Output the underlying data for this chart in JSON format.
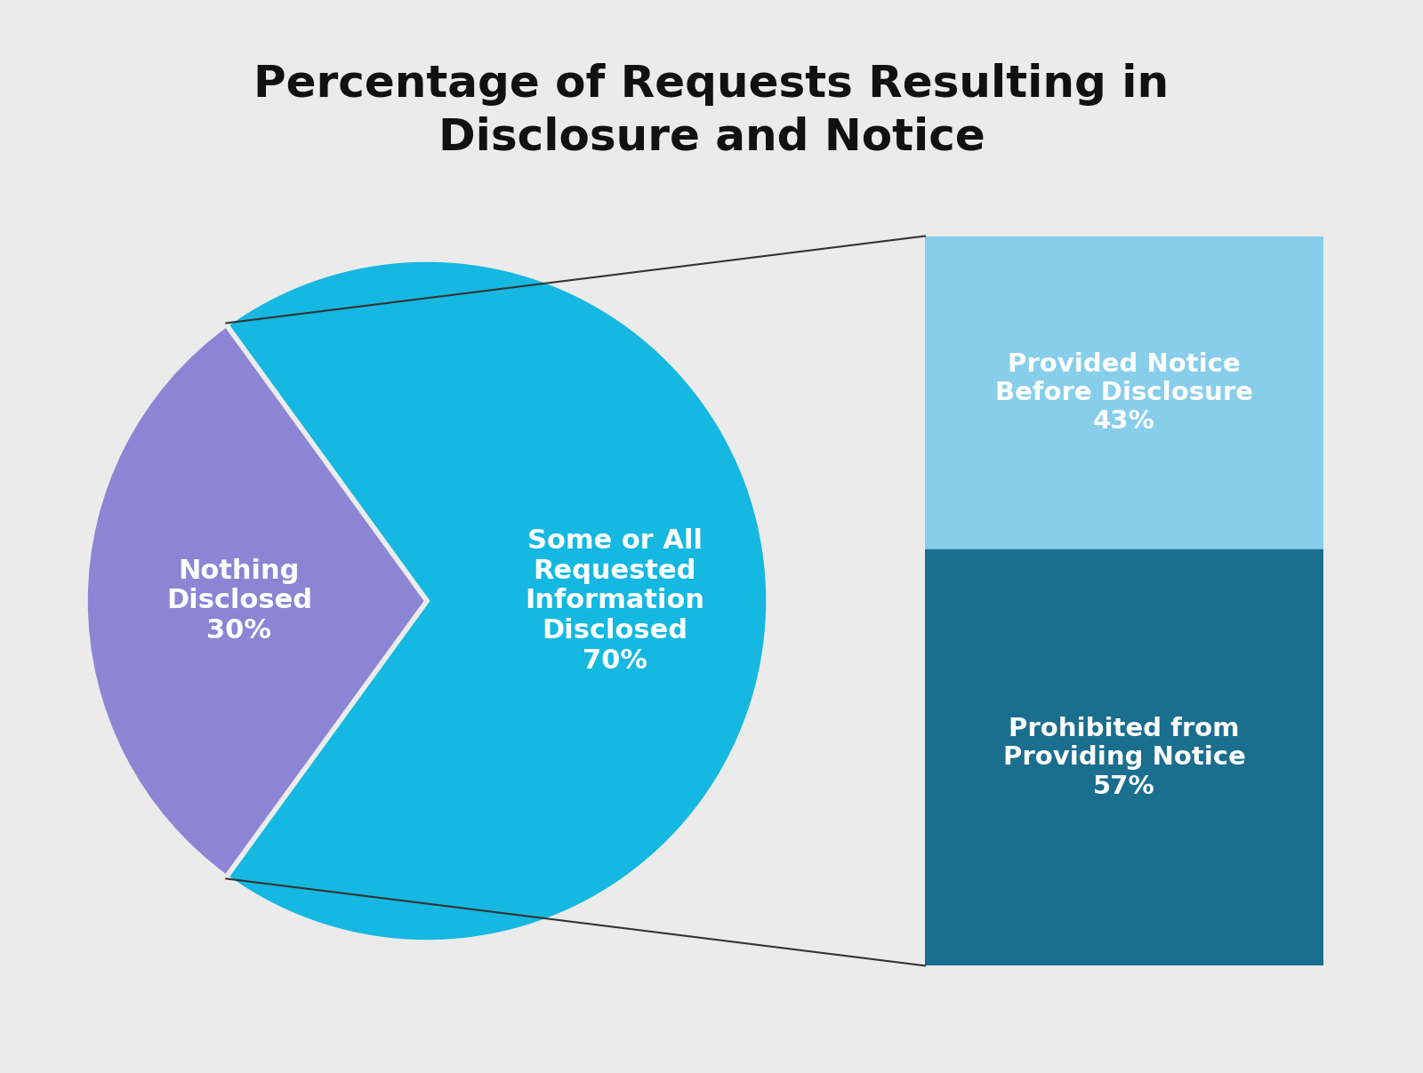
{
  "title": "Percentage of Requests Resulting in\nDisclosure and Notice",
  "title_fontsize": 36,
  "background_color": "#ebebeb",
  "pie_colors": [
    "#14b8e0",
    "#8b85d4"
  ],
  "pie_labels_text": [
    "Some or All\nRequested\nInformation\nDisclosed\n70%",
    "Nothing\nDisclosed\n30%"
  ],
  "pie_values": [
    70,
    30
  ],
  "bar_colors": [
    "#87ceeb",
    "#1a6e8e"
  ],
  "bar_labels": [
    "Provided Notice\nBefore Disclosure\n43%",
    "Prohibited from\nProviding Notice\n57%"
  ],
  "bar_values": [
    43,
    57
  ],
  "text_color_white": "#ffffff",
  "text_color_black": "#1a1a1a",
  "label_fontsize": 22,
  "bar_label_fontsize": 21,
  "title_color": "#111111"
}
